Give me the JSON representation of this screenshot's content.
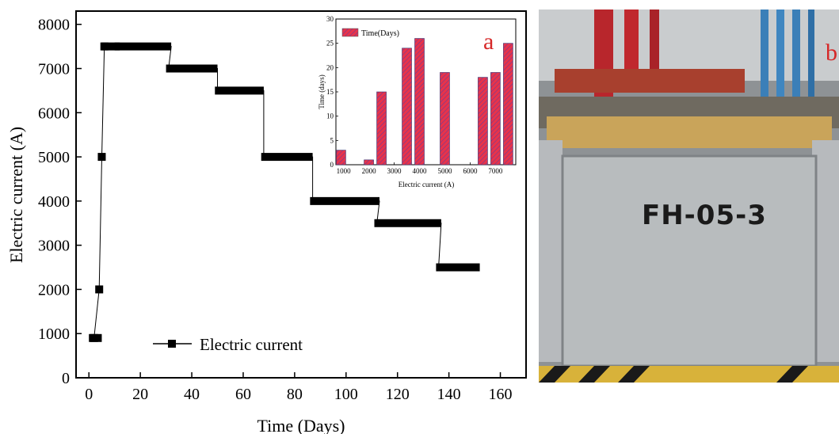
{
  "chart_data": [
    {
      "type": "step",
      "xlabel": "Time (Days)",
      "ylabel": "Electric current (A)",
      "xlim": [
        -5,
        170
      ],
      "ylim": [
        0,
        8300
      ],
      "xticks": [
        0,
        20,
        40,
        60,
        80,
        100,
        120,
        140,
        160
      ],
      "yticks": [
        0,
        1000,
        2000,
        3000,
        4000,
        5000,
        6000,
        7000,
        8000
      ],
      "legend": {
        "label": "Electric current",
        "position": "bottom-center"
      },
      "marker_points": [
        {
          "x": 2,
          "y": 900
        },
        {
          "x": 4,
          "y": 2000
        },
        {
          "x": 5,
          "y": 5000
        },
        {
          "x": 6,
          "y": 7500
        }
      ],
      "segments": [
        {
          "x0": 0,
          "x1": 5,
          "y": 900
        },
        {
          "x0": 5,
          "x1": 12,
          "y": 7500
        },
        {
          "x0": 10,
          "x1": 32,
          "y": 7500
        },
        {
          "x0": 30,
          "x1": 50,
          "y": 7000
        },
        {
          "x0": 49,
          "x1": 68,
          "y": 6500
        },
        {
          "x0": 67,
          "x1": 87,
          "y": 5000
        },
        {
          "x0": 86,
          "x1": 113,
          "y": 4000
        },
        {
          "x0": 111,
          "x1": 137,
          "y": 3500
        },
        {
          "x0": 135,
          "x1": 152,
          "y": 2500
        }
      ]
    },
    {
      "type": "bar",
      "label": "a",
      "xlabel": "Electric current (A)",
      "ylabel": "Time (days)",
      "xlim": [
        700,
        7800
      ],
      "ylim": [
        0,
        30
      ],
      "xticks": [
        1000,
        2000,
        3000,
        4000,
        5000,
        6000,
        7000
      ],
      "yticks": [
        0,
        5,
        10,
        15,
        20,
        25,
        30
      ],
      "legend": {
        "label": "Time(Days)",
        "position": "top-left"
      },
      "series": [
        {
          "name": "Time(Days)",
          "color": "#e8334a",
          "x": [
            900,
            2000,
            2500,
            3500,
            4000,
            5000,
            6500,
            7000,
            7500
          ],
          "values": [
            3,
            1,
            15,
            24,
            26,
            19,
            18,
            19,
            25
          ]
        }
      ]
    }
  ],
  "photo": {
    "label": "FH-05-3",
    "panel_letter": "b"
  }
}
